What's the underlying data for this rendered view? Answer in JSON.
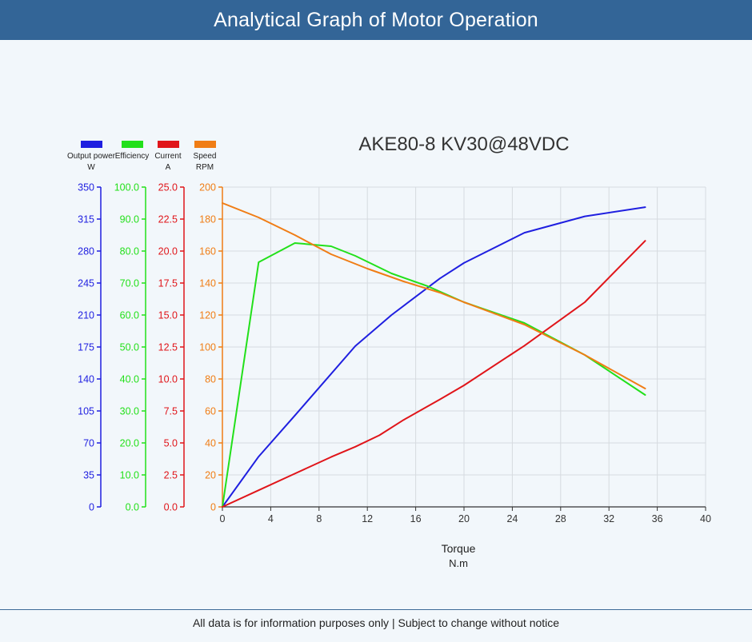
{
  "header": {
    "title": "Analytical Graph of Motor Operation"
  },
  "footer": {
    "note": "All data is for information purposes only | Subject to change without notice"
  },
  "chart_data": {
    "type": "line",
    "title": "AKE80-8 KV30@48VDC",
    "xlabel": "Torque",
    "xunit": "N.m",
    "xlim": [
      0,
      40
    ],
    "xticks": [
      0,
      4,
      8,
      12,
      16,
      20,
      24,
      28,
      32,
      36,
      40
    ],
    "grid": true,
    "legend_position": "top-left",
    "axes": [
      {
        "name": "Output power",
        "unit": "W",
        "color": "#1f1fe0",
        "ylim": [
          0,
          350
        ],
        "ticks": [
          "0",
          "35",
          "70",
          "105",
          "140",
          "175",
          "210",
          "245",
          "280",
          "315",
          "350"
        ]
      },
      {
        "name": "Efficiency",
        "unit": "",
        "color": "#22e01a",
        "ylim": [
          0,
          100
        ],
        "ticks": [
          "0.0",
          "10.0",
          "20.0",
          "30.0",
          "40.0",
          "50.0",
          "60.0",
          "70.0",
          "80.0",
          "90.0",
          "100.0"
        ]
      },
      {
        "name": "Current",
        "unit": "A",
        "color": "#e0151a",
        "ylim": [
          0,
          25
        ],
        "ticks": [
          "0.0",
          "2.5",
          "5.0",
          "7.5",
          "10.0",
          "12.5",
          "15.0",
          "17.5",
          "20.0",
          "22.5",
          "25.0"
        ]
      },
      {
        "name": "Speed",
        "unit": "RPM",
        "color": "#f07d15",
        "ylim": [
          0,
          200
        ],
        "ticks": [
          "0",
          "20",
          "40",
          "60",
          "80",
          "100",
          "120",
          "140",
          "160",
          "180",
          "200"
        ]
      }
    ],
    "series": [
      {
        "name": "Output power",
        "axis": 0,
        "color": "#1f1fe0",
        "x": [
          0,
          3,
          6,
          11,
          14,
          18,
          20,
          25,
          30,
          35
        ],
        "y": [
          0,
          55,
          100,
          176,
          210,
          250,
          267,
          300,
          318,
          328
        ]
      },
      {
        "name": "Efficiency",
        "axis": 1,
        "color": "#22e01a",
        "x": [
          0,
          3,
          6,
          9,
          11,
          14,
          17,
          20,
          25,
          30,
          35
        ],
        "y": [
          0,
          76.5,
          82.5,
          81.5,
          78.5,
          73,
          69,
          64,
          57.5,
          47.5,
          35
        ]
      },
      {
        "name": "Current",
        "axis": 2,
        "color": "#e0151a",
        "x": [
          0,
          3,
          6,
          9,
          11,
          13,
          15,
          18,
          20,
          25,
          30,
          35
        ],
        "y": [
          0,
          1.3,
          2.6,
          3.9,
          4.7,
          5.6,
          6.8,
          8.4,
          9.5,
          12.6,
          16,
          20.8
        ]
      },
      {
        "name": "Speed",
        "axis": 3,
        "color": "#f07d15",
        "x": [
          0,
          3,
          6,
          9,
          12,
          15,
          18,
          20,
          25,
          30,
          35
        ],
        "y": [
          190,
          181,
          170,
          158,
          149,
          141,
          134,
          128,
          114,
          95,
          74
        ]
      }
    ]
  }
}
